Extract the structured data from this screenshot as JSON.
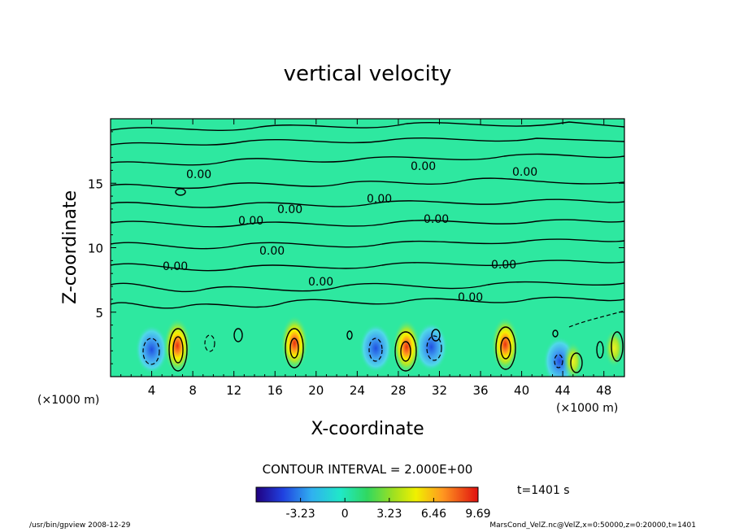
{
  "chart_data": {
    "type": "heatmap",
    "title": "vertical velocity",
    "xlabel": "X-coordinate",
    "ylabel": "Z-coordinate",
    "x_unit": "(×1000 m)",
    "y_unit": "(×1000 m)",
    "x_ticks": [
      "4",
      "8",
      "12",
      "16",
      "20",
      "24",
      "28",
      "32",
      "36",
      "40",
      "44",
      "48"
    ],
    "y_ticks": [
      "5",
      "10",
      "15"
    ],
    "xlim": [
      0,
      50
    ],
    "ylim": [
      0,
      20
    ],
    "contour_label": "0.00",
    "contour_interval_text": "CONTOUR INTERVAL = 2.000E+00",
    "colorbar": {
      "range": [
        -6.46,
        9.69
      ],
      "ticks": [
        "-3.23",
        "0",
        "3.23",
        "6.46",
        "9.69"
      ],
      "tick_values": [
        -3.23,
        0,
        3.23,
        6.46,
        9.69
      ]
    },
    "updraft_cores": [
      {
        "x": 6.5,
        "z": 2.4,
        "peak": 9.5
      },
      {
        "x": 17.9,
        "z": 2.6,
        "peak": 7.0
      },
      {
        "x": 28.8,
        "z": 2.3,
        "peak": 7.5
      },
      {
        "x": 38.4,
        "z": 2.5,
        "peak": 8.0
      },
      {
        "x": 45.0,
        "z": 1.2,
        "peak": 4.0
      },
      {
        "x": 49.0,
        "z": 2.2,
        "peak": 5.0
      }
    ],
    "downdraft_cores": [
      {
        "x": 4.0,
        "z": 2.1,
        "peak": -5.0
      },
      {
        "x": 25.8,
        "z": 2.2,
        "peak": -4.0
      },
      {
        "x": 31.2,
        "z": 2.3,
        "peak": -4.5
      },
      {
        "x": 43.7,
        "z": 1.2,
        "peak": -4.0
      }
    ],
    "time_label": "t=1401 s"
  },
  "footer": {
    "left": "/usr/bin/gpview   2008-12-29",
    "right": "MarsCond_VelZ.nc@VelZ,x=0:50000,z=0:20000,t=1401"
  }
}
